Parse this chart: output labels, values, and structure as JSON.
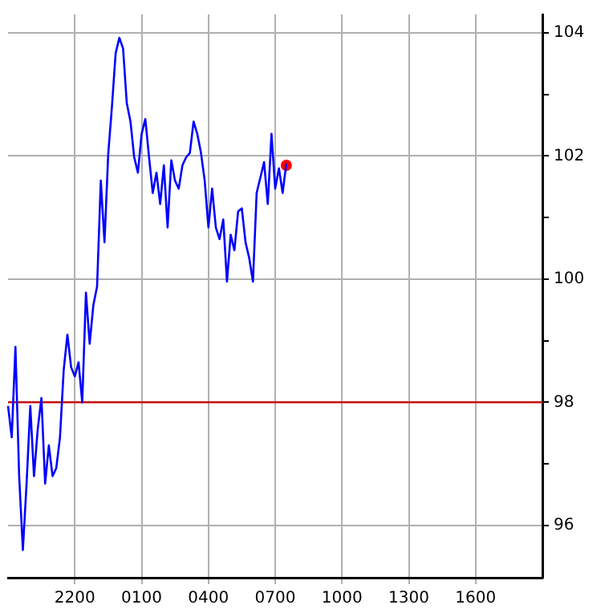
{
  "chart_data": {
    "type": "line",
    "categories": [
      null,
      null,
      null,
      null,
      null,
      null,
      null,
      null,
      null,
      null,
      null,
      null,
      null,
      null,
      null,
      null,
      null,
      null,
      "2200",
      null,
      null,
      null,
      null,
      null,
      null,
      null,
      null,
      null,
      null,
      null,
      null,
      null,
      null,
      null,
      null,
      null,
      "0100",
      null,
      null,
      null,
      null,
      null,
      null,
      null,
      null,
      null,
      null,
      null,
      null,
      null,
      null,
      null,
      null,
      null,
      "0400",
      null,
      null,
      null,
      null,
      null,
      null,
      null,
      null,
      null,
      null,
      null,
      null,
      null,
      null,
      null,
      null,
      null,
      "0700",
      null,
      null,
      null,
      null,
      null,
      null,
      null,
      null,
      null,
      null,
      null,
      null,
      null,
      null,
      null,
      null,
      null,
      "1000",
      null,
      null,
      null,
      null,
      null,
      null,
      null,
      null,
      null,
      null,
      null,
      null,
      null,
      null,
      null,
      null,
      null,
      "1300",
      null,
      null,
      null,
      null,
      null,
      null,
      null,
      null,
      null,
      null,
      null,
      null,
      null,
      null,
      null,
      null,
      null,
      "1600",
      null,
      null,
      null,
      null,
      null,
      null,
      null,
      null,
      null,
      null,
      null,
      null,
      null,
      null,
      null,
      null,
      null,
      null
    ],
    "ylim": [
      95.15,
      104.3
    ],
    "yticks": [
      96,
      {
        "value": 97,
        "label": null
      },
      98,
      {
        "value": 99,
        "label": null
      },
      100,
      {
        "value": 101,
        "label": null
      },
      102,
      {
        "value": 103,
        "label": null
      },
      104
    ],
    "grid": true,
    "legend": false,
    "marker": "none",
    "line_style": "solid",
    "ref_lines": [
      {
        "axis": "y",
        "value": 98,
        "color": "#cc0000"
      }
    ],
    "series": [
      {
        "type": "line",
        "color": "#0000ff",
        "values": [
          97.94,
          97.43,
          98.9,
          96.8,
          95.6,
          96.68,
          97.94,
          96.8,
          97.56,
          98.07,
          96.68,
          97.3,
          96.8,
          96.93,
          97.43,
          98.52,
          99.1,
          98.57,
          98.42,
          98.65,
          98.0,
          99.78,
          98.95,
          99.58,
          99.88,
          101.6,
          100.6,
          102.03,
          102.8,
          103.67,
          103.92,
          103.75,
          102.86,
          102.56,
          101.98,
          101.73,
          102.36,
          102.6,
          101.98,
          101.4,
          101.73,
          101.22,
          101.85,
          100.84,
          101.93,
          101.6,
          101.47,
          101.85,
          101.98,
          102.05,
          102.56,
          102.36,
          102.05,
          101.6,
          100.84,
          101.47,
          100.84,
          100.65,
          100.97,
          99.96,
          100.72,
          100.47,
          101.1,
          101.15,
          100.6,
          100.34,
          99.96,
          101.4,
          101.65,
          101.9,
          101.22,
          102.36,
          101.47,
          101.8,
          101.4,
          101.88,
          null,
          null,
          null,
          null,
          null,
          null,
          null,
          null,
          null,
          null,
          null,
          null,
          null,
          null,
          null,
          null,
          null,
          null,
          null,
          null,
          null,
          null,
          null,
          null,
          null,
          null,
          null,
          null,
          null,
          null,
          null,
          null,
          null,
          null,
          null,
          null,
          null,
          null,
          null,
          null,
          null,
          null,
          null,
          null,
          null,
          null,
          null,
          null,
          null,
          null,
          null,
          null,
          null,
          null,
          null,
          null,
          null,
          null,
          null,
          null,
          null,
          null,
          null,
          null,
          null,
          null,
          null,
          null,
          null
        ]
      },
      {
        "type": "scatter",
        "color": "#ff0000",
        "marker": "circle",
        "values": [
          null,
          null,
          null,
          null,
          null,
          null,
          null,
          null,
          null,
          null,
          null,
          null,
          null,
          null,
          null,
          null,
          null,
          null,
          null,
          null,
          null,
          null,
          null,
          null,
          null,
          null,
          null,
          null,
          null,
          null,
          null,
          null,
          null,
          null,
          null,
          null,
          null,
          null,
          null,
          null,
          null,
          null,
          null,
          null,
          null,
          null,
          null,
          null,
          null,
          null,
          null,
          null,
          null,
          null,
          null,
          null,
          null,
          null,
          null,
          null,
          null,
          null,
          null,
          null,
          null,
          null,
          null,
          null,
          null,
          null,
          null,
          null,
          null,
          null,
          null,
          101.85,
          null,
          null,
          null,
          null,
          null,
          null,
          null,
          null,
          null,
          null,
          null,
          null,
          null,
          null,
          null,
          null,
          null,
          null,
          null,
          null,
          null,
          null,
          null,
          null,
          null,
          null,
          null,
          null,
          null,
          null,
          null,
          null,
          null,
          null,
          null,
          null,
          null,
          null,
          null,
          null,
          null,
          null,
          null,
          null,
          null,
          null,
          null,
          null,
          null,
          null,
          null,
          null,
          null,
          null,
          null,
          null,
          null,
          null,
          null,
          null,
          null,
          null,
          null,
          null,
          null,
          null,
          null,
          null,
          null
        ]
      }
    ]
  }
}
